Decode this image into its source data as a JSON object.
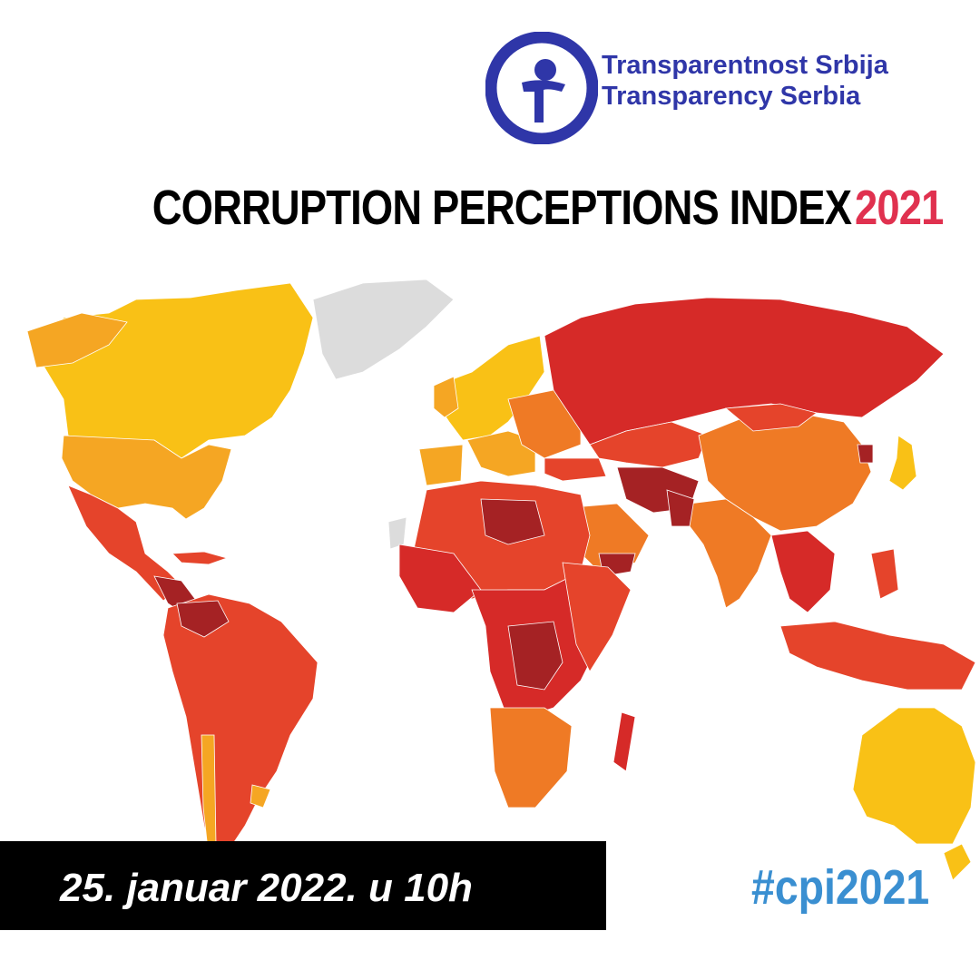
{
  "organization": {
    "name_sr": "Transparentnost Srbija",
    "name_en": "Transparency Serbia",
    "brand_color": "#2f36a8",
    "logo_icon": "transparency-person-circle-icon"
  },
  "headline": {
    "text": "CORRUPTION PERCEPTIONS INDEX",
    "year": "2021",
    "year_color": "#e0314f"
  },
  "event": {
    "date_text": "25. januar 2022. u 10h"
  },
  "hashtag": {
    "text": "#cpi2021",
    "color": "#3a8fd1"
  },
  "map": {
    "subject": "world-corruption-map",
    "colors": {
      "cleanest": "#f9c116",
      "clean": "#f5a623",
      "medium": "#ef7a25",
      "high": "#e5442b",
      "very_high": "#d62a28",
      "highest": "#a52224",
      "no_data": "#dcdcdc"
    }
  }
}
